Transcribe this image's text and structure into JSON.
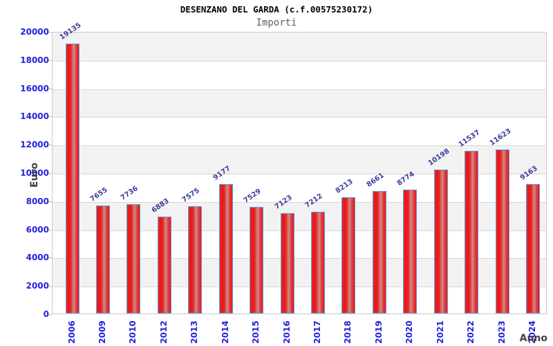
{
  "header": {
    "title": "DESENZANO DEL GARDA (c.f.00575230172)",
    "subtitle": "Importi"
  },
  "chart_data": {
    "type": "bar",
    "title": "DESENZANO DEL GARDA (c.f.00575230172)",
    "subtitle": "Importi",
    "xlabel": "Anno",
    "ylabel": "Euro",
    "categories": [
      "2006",
      "2009",
      "2010",
      "2012",
      "2013",
      "2014",
      "2015",
      "2016",
      "2017",
      "2018",
      "2019",
      "2020",
      "2021",
      "2022",
      "2023",
      "2024"
    ],
    "values": [
      19135,
      7655,
      7736,
      6883,
      7575,
      9177,
      7529,
      7123,
      7212,
      8213,
      8661,
      8774,
      10198,
      11537,
      11623,
      9163
    ],
    "ylim": [
      0,
      20000
    ],
    "ytick_step": 2000,
    "grid": true,
    "legend": "none",
    "colors": {
      "bar_fill": "#ee1414",
      "bar_fill_mid": "#cd8d8d",
      "bar_outline": "#5b9fe0",
      "tick_label": "#2222dd",
      "value_label": "#3d3d99",
      "band_alt": "#f2f2f2",
      "gridline": "#d6d6d6",
      "plot_border": "#c9c9c9",
      "axis_title": "#404040",
      "title_color": "#000000",
      "subtitle_color": "#606060",
      "background": "#ffffff"
    }
  }
}
